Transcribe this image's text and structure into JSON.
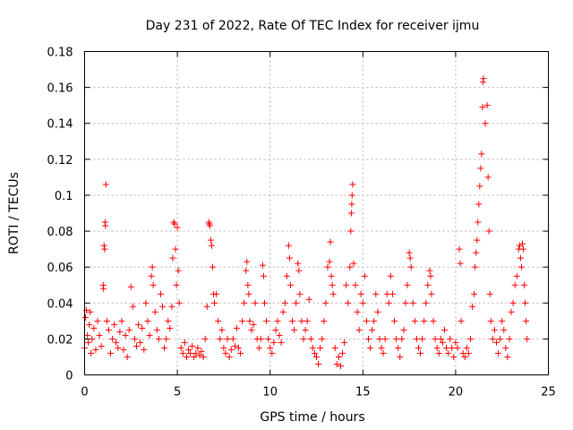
{
  "chart_data": {
    "type": "scatter",
    "title": "Day 231 of 2022, Rate Of TEC Index for receiver ijmu",
    "xlabel": "GPS time / hours",
    "ylabel": "ROTI / TECUs",
    "xlim": [
      0,
      25
    ],
    "ylim": [
      0,
      0.18
    ],
    "grid": true,
    "marker": "plus",
    "series_color": "#ff0000",
    "x_ticks": [
      {
        "value": 0,
        "label": "0"
      },
      {
        "value": 5,
        "label": "5"
      },
      {
        "value": 10,
        "label": "10"
      },
      {
        "value": 15,
        "label": "15"
      },
      {
        "value": 20,
        "label": "20"
      },
      {
        "value": 25,
        "label": "25"
      }
    ],
    "y_ticks": [
      {
        "value": 0,
        "label": "0"
      },
      {
        "value": 0.02,
        "label": "0.02"
      },
      {
        "value": 0.04,
        "label": "0.04"
      },
      {
        "value": 0.06,
        "label": "0.06"
      },
      {
        "value": 0.08,
        "label": "0.08"
      },
      {
        "value": 0.1,
        "label": "0.1"
      },
      {
        "value": 0.12,
        "label": "0.12"
      },
      {
        "value": 0.14,
        "label": "0.14"
      },
      {
        "value": 0.16,
        "label": "0.16"
      },
      {
        "value": 0.18,
        "label": "0.18"
      }
    ],
    "series": [
      {
        "name": "ROTI",
        "points": [
          [
            0.0,
            0.015
          ],
          [
            0.05,
            0.032
          ],
          [
            0.1,
            0.036
          ],
          [
            0.15,
            0.022
          ],
          [
            0.2,
            0.018
          ],
          [
            0.25,
            0.028
          ],
          [
            0.3,
            0.035
          ],
          [
            0.35,
            0.012
          ],
          [
            0.4,
            0.02
          ],
          [
            0.5,
            0.026
          ],
          [
            0.6,
            0.014
          ],
          [
            0.7,
            0.03
          ],
          [
            0.8,
            0.022
          ],
          [
            0.9,
            0.016
          ],
          [
            1.0,
            0.05
          ],
          [
            1.02,
            0.048
          ],
          [
            1.05,
            0.072
          ],
          [
            1.08,
            0.07
          ],
          [
            1.1,
            0.085
          ],
          [
            1.12,
            0.083
          ],
          [
            1.15,
            0.106
          ],
          [
            1.2,
            0.03
          ],
          [
            1.3,
            0.025
          ],
          [
            1.4,
            0.012
          ],
          [
            1.5,
            0.02
          ],
          [
            1.6,
            0.028
          ],
          [
            1.7,
            0.018
          ],
          [
            1.8,
            0.015
          ],
          [
            1.9,
            0.024
          ],
          [
            2.0,
            0.03
          ],
          [
            2.1,
            0.014
          ],
          [
            2.2,
            0.022
          ],
          [
            2.3,
            0.01
          ],
          [
            2.4,
            0.025
          ],
          [
            2.5,
            0.049
          ],
          [
            2.6,
            0.038
          ],
          [
            2.7,
            0.02
          ],
          [
            2.8,
            0.016
          ],
          [
            2.9,
            0.028
          ],
          [
            3.0,
            0.018
          ],
          [
            3.1,
            0.026
          ],
          [
            3.2,
            0.014
          ],
          [
            3.3,
            0.04
          ],
          [
            3.4,
            0.03
          ],
          [
            3.5,
            0.022
          ],
          [
            3.6,
            0.055
          ],
          [
            3.65,
            0.06
          ],
          [
            3.7,
            0.05
          ],
          [
            3.8,
            0.035
          ],
          [
            3.9,
            0.025
          ],
          [
            4.0,
            0.02
          ],
          [
            4.1,
            0.045
          ],
          [
            4.2,
            0.038
          ],
          [
            4.3,
            0.015
          ],
          [
            4.4,
            0.02
          ],
          [
            4.5,
            0.03
          ],
          [
            4.6,
            0.026
          ],
          [
            4.7,
            0.038
          ],
          [
            4.75,
            0.065
          ],
          [
            4.8,
            0.085
          ],
          [
            4.85,
            0.084
          ],
          [
            4.9,
            0.07
          ],
          [
            4.95,
            0.05
          ],
          [
            5.0,
            0.082
          ],
          [
            5.05,
            0.058
          ],
          [
            5.1,
            0.04
          ],
          [
            5.2,
            0.015
          ],
          [
            5.3,
            0.012
          ],
          [
            5.4,
            0.018
          ],
          [
            5.5,
            0.01
          ],
          [
            5.6,
            0.014
          ],
          [
            5.7,
            0.012
          ],
          [
            5.8,
            0.016
          ],
          [
            5.9,
            0.01
          ],
          [
            6.0,
            0.012
          ],
          [
            6.1,
            0.015
          ],
          [
            6.2,
            0.011
          ],
          [
            6.3,
            0.013
          ],
          [
            6.4,
            0.01
          ],
          [
            6.5,
            0.02
          ],
          [
            6.6,
            0.038
          ],
          [
            6.7,
            0.085
          ],
          [
            6.72,
            0.084
          ],
          [
            6.75,
            0.083
          ],
          [
            6.8,
            0.075
          ],
          [
            6.85,
            0.072
          ],
          [
            6.9,
            0.06
          ],
          [
            6.95,
            0.045
          ],
          [
            7.0,
            0.04
          ],
          [
            7.1,
            0.045
          ],
          [
            7.2,
            0.03
          ],
          [
            7.3,
            0.02
          ],
          [
            7.4,
            0.025
          ],
          [
            7.5,
            0.015
          ],
          [
            7.6,
            0.012
          ],
          [
            7.7,
            0.02
          ],
          [
            7.8,
            0.01
          ],
          [
            7.9,
            0.014
          ],
          [
            8.0,
            0.02
          ],
          [
            8.1,
            0.016
          ],
          [
            8.2,
            0.026
          ],
          [
            8.3,
            0.015
          ],
          [
            8.4,
            0.012
          ],
          [
            8.5,
            0.03
          ],
          [
            8.6,
            0.04
          ],
          [
            8.7,
            0.058
          ],
          [
            8.75,
            0.063
          ],
          [
            8.8,
            0.05
          ],
          [
            8.85,
            0.045
          ],
          [
            8.9,
            0.03
          ],
          [
            9.0,
            0.025
          ],
          [
            9.1,
            0.028
          ],
          [
            9.2,
            0.04
          ],
          [
            9.3,
            0.02
          ],
          [
            9.4,
            0.015
          ],
          [
            9.5,
            0.02
          ],
          [
            9.6,
            0.061
          ],
          [
            9.65,
            0.055
          ],
          [
            9.7,
            0.04
          ],
          [
            9.8,
            0.03
          ],
          [
            9.9,
            0.02
          ],
          [
            10.0,
            0.015
          ],
          [
            10.1,
            0.012
          ],
          [
            10.2,
            0.018
          ],
          [
            10.3,
            0.025
          ],
          [
            10.4,
            0.03
          ],
          [
            10.5,
            0.022
          ],
          [
            10.6,
            0.018
          ],
          [
            10.7,
            0.035
          ],
          [
            10.8,
            0.04
          ],
          [
            10.9,
            0.055
          ],
          [
            11.0,
            0.072
          ],
          [
            11.05,
            0.065
          ],
          [
            11.1,
            0.05
          ],
          [
            11.2,
            0.03
          ],
          [
            11.3,
            0.025
          ],
          [
            11.4,
            0.04
          ],
          [
            11.5,
            0.062
          ],
          [
            11.55,
            0.058
          ],
          [
            11.6,
            0.045
          ],
          [
            11.7,
            0.03
          ],
          [
            11.8,
            0.02
          ],
          [
            11.9,
            0.025
          ],
          [
            12.0,
            0.03
          ],
          [
            12.1,
            0.042
          ],
          [
            12.2,
            0.02
          ],
          [
            12.3,
            0.015
          ],
          [
            12.4,
            0.012
          ],
          [
            12.5,
            0.01
          ],
          [
            12.6,
            0.006
          ],
          [
            12.7,
            0.015
          ],
          [
            12.8,
            0.02
          ],
          [
            12.9,
            0.03
          ],
          [
            13.0,
            0.04
          ],
          [
            13.1,
            0.06
          ],
          [
            13.2,
            0.063
          ],
          [
            13.25,
            0.074
          ],
          [
            13.3,
            0.055
          ],
          [
            13.35,
            0.05
          ],
          [
            13.4,
            0.045
          ],
          [
            13.5,
            0.015
          ],
          [
            13.6,
            0.006
          ],
          [
            13.7,
            0.01
          ],
          [
            13.8,
            0.005
          ],
          [
            13.9,
            0.012
          ],
          [
            14.0,
            0.018
          ],
          [
            14.1,
            0.05
          ],
          [
            14.2,
            0.04
          ],
          [
            14.3,
            0.06
          ],
          [
            14.35,
            0.08
          ],
          [
            14.38,
            0.09
          ],
          [
            14.4,
            0.095
          ],
          [
            14.42,
            0.1
          ],
          [
            14.45,
            0.106
          ],
          [
            14.5,
            0.062
          ],
          [
            14.6,
            0.05
          ],
          [
            14.7,
            0.035
          ],
          [
            14.8,
            0.025
          ],
          [
            14.9,
            0.045
          ],
          [
            15.0,
            0.04
          ],
          [
            15.1,
            0.055
          ],
          [
            15.2,
            0.03
          ],
          [
            15.3,
            0.02
          ],
          [
            15.4,
            0.015
          ],
          [
            15.5,
            0.025
          ],
          [
            15.6,
            0.03
          ],
          [
            15.7,
            0.045
          ],
          [
            15.8,
            0.035
          ],
          [
            15.9,
            0.02
          ],
          [
            16.0,
            0.015
          ],
          [
            16.1,
            0.012
          ],
          [
            16.2,
            0.02
          ],
          [
            16.3,
            0.045
          ],
          [
            16.4,
            0.04
          ],
          [
            16.5,
            0.055
          ],
          [
            16.6,
            0.045
          ],
          [
            16.7,
            0.03
          ],
          [
            16.8,
            0.02
          ],
          [
            16.9,
            0.015
          ],
          [
            17.0,
            0.01
          ],
          [
            17.1,
            0.02
          ],
          [
            17.2,
            0.025
          ],
          [
            17.3,
            0.04
          ],
          [
            17.4,
            0.05
          ],
          [
            17.5,
            0.068
          ],
          [
            17.55,
            0.065
          ],
          [
            17.6,
            0.06
          ],
          [
            17.7,
            0.04
          ],
          [
            17.8,
            0.03
          ],
          [
            17.9,
            0.02
          ],
          [
            18.0,
            0.015
          ],
          [
            18.1,
            0.012
          ],
          [
            18.2,
            0.02
          ],
          [
            18.3,
            0.03
          ],
          [
            18.4,
            0.04
          ],
          [
            18.5,
            0.05
          ],
          [
            18.6,
            0.058
          ],
          [
            18.65,
            0.055
          ],
          [
            18.7,
            0.045
          ],
          [
            18.8,
            0.03
          ],
          [
            18.9,
            0.02
          ],
          [
            19.0,
            0.015
          ],
          [
            19.1,
            0.012
          ],
          [
            19.2,
            0.02
          ],
          [
            19.3,
            0.018
          ],
          [
            19.4,
            0.025
          ],
          [
            19.5,
            0.015
          ],
          [
            19.6,
            0.012
          ],
          [
            19.7,
            0.02
          ],
          [
            19.8,
            0.015
          ],
          [
            19.9,
            0.01
          ],
          [
            20.0,
            0.018
          ],
          [
            20.1,
            0.015
          ],
          [
            20.2,
            0.07
          ],
          [
            20.25,
            0.062
          ],
          [
            20.3,
            0.03
          ],
          [
            20.4,
            0.012
          ],
          [
            20.5,
            0.01
          ],
          [
            20.6,
            0.015
          ],
          [
            20.7,
            0.012
          ],
          [
            20.8,
            0.02
          ],
          [
            20.9,
            0.038
          ],
          [
            21.0,
            0.045
          ],
          [
            21.05,
            0.06
          ],
          [
            21.1,
            0.068
          ],
          [
            21.15,
            0.075
          ],
          [
            21.2,
            0.085
          ],
          [
            21.25,
            0.095
          ],
          [
            21.3,
            0.105
          ],
          [
            21.35,
            0.115
          ],
          [
            21.4,
            0.123
          ],
          [
            21.45,
            0.149
          ],
          [
            21.48,
            0.163
          ],
          [
            21.5,
            0.165
          ],
          [
            21.6,
            0.14
          ],
          [
            21.7,
            0.15
          ],
          [
            21.75,
            0.11
          ],
          [
            21.8,
            0.08
          ],
          [
            21.85,
            0.045
          ],
          [
            21.9,
            0.03
          ],
          [
            22.0,
            0.02
          ],
          [
            22.1,
            0.025
          ],
          [
            22.2,
            0.018
          ],
          [
            22.3,
            0.012
          ],
          [
            22.4,
            0.02
          ],
          [
            22.5,
            0.03
          ],
          [
            22.6,
            0.025
          ],
          [
            22.7,
            0.015
          ],
          [
            22.8,
            0.01
          ],
          [
            22.9,
            0.02
          ],
          [
            23.0,
            0.035
          ],
          [
            23.1,
            0.04
          ],
          [
            23.2,
            0.05
          ],
          [
            23.3,
            0.055
          ],
          [
            23.4,
            0.07
          ],
          [
            23.45,
            0.072
          ],
          [
            23.5,
            0.065
          ],
          [
            23.55,
            0.06
          ],
          [
            23.6,
            0.073
          ],
          [
            23.65,
            0.07
          ],
          [
            23.7,
            0.05
          ],
          [
            23.75,
            0.04
          ],
          [
            23.8,
            0.03
          ],
          [
            23.85,
            0.02
          ]
        ]
      }
    ]
  }
}
